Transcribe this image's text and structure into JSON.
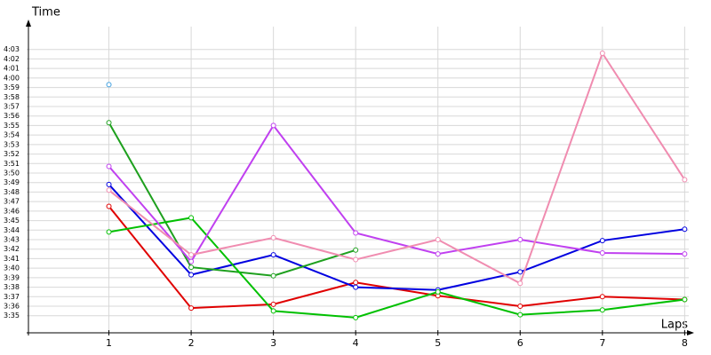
{
  "chart_data": {
    "type": "line",
    "y_label": "Time",
    "x_label": "Laps",
    "x": [
      1,
      2,
      3,
      4,
      5,
      6,
      7,
      8
    ],
    "xlim": [
      0,
      8.05
    ],
    "xticks": [
      1,
      2,
      3,
      4,
      5,
      6,
      7,
      8
    ],
    "ylim": [
      213.2,
      245.4
    ],
    "yticks": [
      {
        "value": 215,
        "label": "3:35"
      },
      {
        "value": 216,
        "label": "3:36"
      },
      {
        "value": 217,
        "label": "3:37"
      },
      {
        "value": 218,
        "label": "3:38"
      },
      {
        "value": 219,
        "label": "3:39"
      },
      {
        "value": 220,
        "label": "3:40"
      },
      {
        "value": 221,
        "label": "3:41"
      },
      {
        "value": 222,
        "label": "3:42"
      },
      {
        "value": 223,
        "label": "3:43"
      },
      {
        "value": 224,
        "label": "3:44"
      },
      {
        "value": 225,
        "label": "3:45"
      },
      {
        "value": 226,
        "label": "3:46"
      },
      {
        "value": 227,
        "label": "3:47"
      },
      {
        "value": 228,
        "label": "3:48"
      },
      {
        "value": 229,
        "label": "3:49"
      },
      {
        "value": 230,
        "label": "3:50"
      },
      {
        "value": 231,
        "label": "3:51"
      },
      {
        "value": 232,
        "label": "3:52"
      },
      {
        "value": 233,
        "label": "3:53"
      },
      {
        "value": 234,
        "label": "3:54"
      },
      {
        "value": 235,
        "label": "3:55"
      },
      {
        "value": 236,
        "label": "3:56"
      },
      {
        "value": 237,
        "label": "3:57"
      },
      {
        "value": 238,
        "label": "3:58"
      },
      {
        "value": 239,
        "label": "3:59"
      },
      {
        "value": 240,
        "label": "4:00"
      },
      {
        "value": 241,
        "label": "4:01"
      },
      {
        "value": 242,
        "label": "4:02"
      },
      {
        "value": 243,
        "label": "4:03"
      }
    ],
    "grid": true,
    "series": [
      {
        "color": "#e00000",
        "values": [
          226.5,
          215.8,
          216.2,
          218.5,
          217.1,
          216.0,
          217.0,
          216.7
        ]
      },
      {
        "color": "#0000e0",
        "values": [
          228.8,
          219.3,
          221.4,
          218.0,
          217.7,
          219.6,
          222.9,
          224.1
        ]
      },
      {
        "color": "#1ea01e",
        "values": [
          235.3,
          220.1,
          219.2,
          221.9,
          null,
          null,
          null,
          null
        ]
      },
      {
        "color": "#00c000",
        "values": [
          223.8,
          225.3,
          215.5,
          214.8,
          217.5,
          215.1,
          215.6,
          216.7
        ]
      },
      {
        "color": "#c040f0",
        "values": [
          230.7,
          220.7,
          235.0,
          223.7,
          221.5,
          223.0,
          221.6,
          221.5
        ]
      },
      {
        "color": "#f08cb0",
        "values": [
          228.2,
          221.4,
          223.2,
          220.9,
          223.0,
          218.4,
          242.6,
          229.3
        ]
      },
      {
        "color": "#40a0e0",
        "values": [
          239.3,
          null,
          null,
          null,
          null,
          null,
          null,
          null
        ]
      }
    ]
  }
}
